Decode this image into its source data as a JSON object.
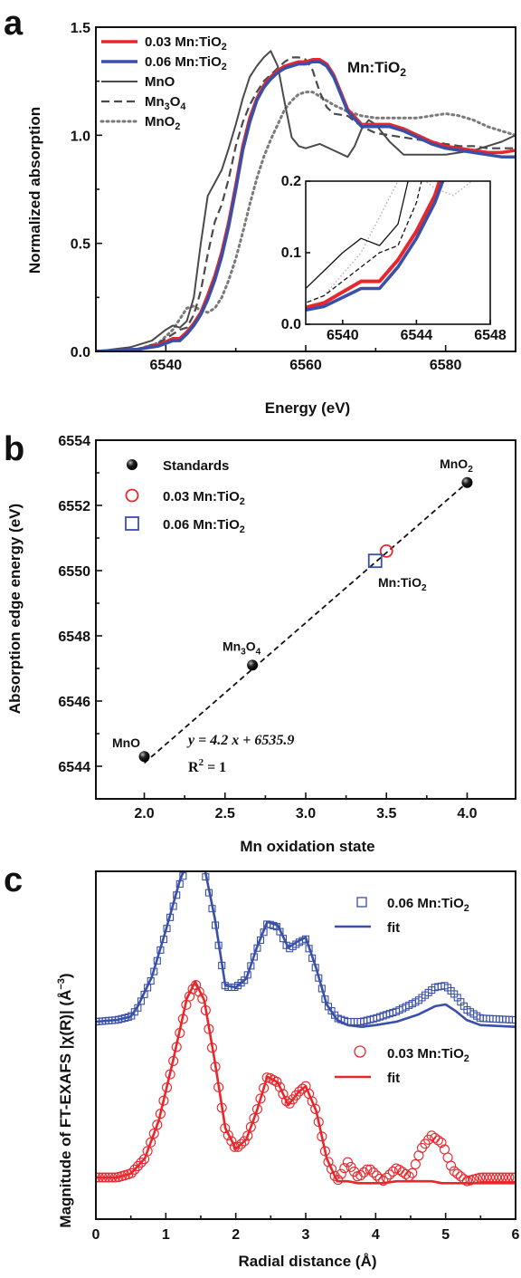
{
  "panel_labels": {
    "a": "a",
    "b": "b",
    "c": "c"
  },
  "colors": {
    "red": "#e8262b",
    "blue": "#3a4fa8",
    "dark_gray": "#4a4a4a",
    "gray": "#7a7a7a",
    "mid_gray": "#8a8a8a",
    "black": "#111111"
  },
  "chart_data": [
    {
      "id": "a",
      "type": "line",
      "xlabel": "Energy (eV)",
      "ylabel": "Normalized absorption",
      "xlim": [
        6530,
        6590
      ],
      "ylim": [
        0,
        1.5
      ],
      "xticks": [
        6540,
        6560,
        6580
      ],
      "yticks": [
        0.0,
        0.5,
        1.0,
        1.5
      ],
      "xtick_labels": [
        "6540",
        "6560",
        "6580"
      ],
      "ytick_labels": [
        "0.0",
        "0.5",
        "1.0",
        "1.5"
      ],
      "legend_position": "top-left",
      "annotation": {
        "label": "Mn:TiO",
        "sub": "2"
      },
      "series": [
        {
          "name": "0.03 Mn:TiO",
          "sub": "2",
          "color": "#e8262b",
          "style": "solid",
          "width": 3.5,
          "x": [
            6530,
            6536,
            6539,
            6541,
            6542,
            6543,
            6544,
            6545,
            6546,
            6547,
            6548,
            6549,
            6550,
            6551,
            6552,
            6553,
            6554,
            6555,
            6556,
            6557,
            6558,
            6559,
            6560,
            6561,
            6562,
            6563,
            6564,
            6565,
            6566,
            6568,
            6570,
            6572,
            6574,
            6576,
            6578,
            6580,
            6582,
            6584,
            6586,
            6588,
            6590
          ],
          "y": [
            0.0,
            0.01,
            0.03,
            0.06,
            0.06,
            0.09,
            0.13,
            0.18,
            0.26,
            0.35,
            0.46,
            0.6,
            0.77,
            0.95,
            1.08,
            1.17,
            1.23,
            1.27,
            1.3,
            1.32,
            1.33,
            1.34,
            1.34,
            1.35,
            1.35,
            1.33,
            1.28,
            1.2,
            1.12,
            1.05,
            1.05,
            1.05,
            1.03,
            1.0,
            0.97,
            0.95,
            0.94,
            0.93,
            0.92,
            0.92,
            0.93
          ]
        },
        {
          "name": "0.06 Mn:TiO",
          "sub": "2",
          "color": "#3a4fa8",
          "style": "solid",
          "width": 3.5,
          "x": [
            6530,
            6536,
            6539,
            6541,
            6542,
            6543,
            6544,
            6545,
            6546,
            6547,
            6548,
            6549,
            6550,
            6551,
            6552,
            6553,
            6554,
            6555,
            6556,
            6557,
            6558,
            6559,
            6560,
            6561,
            6562,
            6563,
            6564,
            6565,
            6566,
            6568,
            6570,
            6572,
            6574,
            6576,
            6578,
            6580,
            6582,
            6584,
            6586,
            6588,
            6590
          ],
          "y": [
            0.0,
            0.01,
            0.025,
            0.05,
            0.05,
            0.08,
            0.12,
            0.17,
            0.24,
            0.33,
            0.44,
            0.58,
            0.75,
            0.93,
            1.06,
            1.16,
            1.22,
            1.26,
            1.29,
            1.31,
            1.32,
            1.33,
            1.33,
            1.34,
            1.34,
            1.32,
            1.27,
            1.19,
            1.11,
            1.04,
            1.04,
            1.04,
            1.02,
            0.99,
            0.96,
            0.94,
            0.93,
            0.92,
            0.91,
            0.9,
            0.9
          ]
        },
        {
          "name": "MnO",
          "color": "#4a4a4a",
          "style": "solid",
          "width": 2,
          "x": [
            6530,
            6535,
            6538,
            6540,
            6541,
            6542,
            6543,
            6544,
            6545,
            6546,
            6547,
            6548,
            6549,
            6550,
            6551,
            6552,
            6553,
            6554,
            6555,
            6556,
            6557,
            6558,
            6559,
            6560,
            6561,
            6562,
            6564,
            6566,
            6567,
            6568,
            6569,
            6570,
            6572,
            6574,
            6576,
            6580,
            6582,
            6584,
            6586,
            6588,
            6590
          ],
          "y": [
            0.0,
            0.02,
            0.05,
            0.1,
            0.12,
            0.11,
            0.14,
            0.25,
            0.5,
            0.72,
            0.78,
            0.84,
            0.94,
            1.05,
            1.17,
            1.27,
            1.32,
            1.36,
            1.39,
            1.32,
            1.15,
            0.99,
            0.95,
            0.94,
            0.95,
            0.96,
            0.93,
            0.9,
            0.95,
            1.03,
            1.07,
            1.05,
            0.97,
            0.91,
            0.91,
            0.91,
            0.92,
            0.93,
            0.95,
            0.97,
            1.0
          ]
        },
        {
          "name": "Mn",
          "sub": "3",
          "suffix": "O",
          "sub2": "4",
          "color": "#4a4a4a",
          "style": "dashed",
          "width": 2.2,
          "x": [
            6530,
            6536,
            6539,
            6541,
            6542,
            6543,
            6544,
            6545,
            6546,
            6547,
            6548,
            6549,
            6550,
            6551,
            6552,
            6553,
            6554,
            6555,
            6556,
            6557,
            6558,
            6559,
            6560,
            6561,
            6562,
            6563,
            6564,
            6566,
            6568,
            6570,
            6572,
            6574,
            6576,
            6578,
            6580,
            6582,
            6584,
            6586,
            6588,
            6590
          ],
          "y": [
            0.0,
            0.01,
            0.04,
            0.08,
            0.1,
            0.11,
            0.17,
            0.28,
            0.45,
            0.6,
            0.68,
            0.8,
            0.95,
            1.06,
            1.14,
            1.2,
            1.25,
            1.28,
            1.31,
            1.34,
            1.36,
            1.36,
            1.35,
            1.3,
            1.2,
            1.13,
            1.1,
            1.09,
            1.04,
            1.01,
            1.0,
            0.99,
            0.98,
            0.97,
            0.96,
            0.95,
            0.95,
            0.94,
            0.94,
            0.94
          ]
        },
        {
          "name": "MnO",
          "sub": "2",
          "color": "#7a7a7a",
          "style": "dotted",
          "width": 3,
          "x": [
            6530,
            6536,
            6539,
            6541,
            6542,
            6543,
            6544,
            6545,
            6546,
            6547,
            6548,
            6549,
            6550,
            6551,
            6552,
            6553,
            6554,
            6555,
            6556,
            6557,
            6558,
            6559,
            6560,
            6561,
            6562,
            6563,
            6564,
            6566,
            6568,
            6570,
            6572,
            6574,
            6576,
            6578,
            6580,
            6582,
            6584,
            6586,
            6588,
            6590
          ],
          "y": [
            0.0,
            0.01,
            0.04,
            0.1,
            0.15,
            0.2,
            0.21,
            0.19,
            0.18,
            0.2,
            0.25,
            0.33,
            0.43,
            0.55,
            0.68,
            0.8,
            0.9,
            0.98,
            1.05,
            1.12,
            1.16,
            1.19,
            1.2,
            1.2,
            1.18,
            1.16,
            1.14,
            1.11,
            1.09,
            1.08,
            1.08,
            1.08,
            1.08,
            1.09,
            1.1,
            1.09,
            1.07,
            1.04,
            1.02,
            1.0
          ]
        }
      ],
      "inset": {
        "xlim": [
          6538,
          6548
        ],
        "ylim": [
          0,
          0.2
        ],
        "xticks": [
          6540,
          6544,
          6548
        ],
        "yticks": [
          0.0,
          0.1,
          0.2
        ],
        "xtick_labels": [
          "6540",
          "6544",
          "6548"
        ],
        "ytick_labels": [
          "0.0",
          "0.1",
          "0.2"
        ]
      }
    },
    {
      "id": "b",
      "type": "scatter",
      "xlabel": "Mn oxidation state",
      "ylabel": "Absorption edge energy (eV)",
      "xlim": [
        1.7,
        4.3
      ],
      "ylim": [
        6543,
        6554
      ],
      "xticks": [
        2.0,
        2.5,
        3.0,
        3.5,
        4.0
      ],
      "yticks": [
        6544,
        6546,
        6548,
        6550,
        6552,
        6554
      ],
      "xtick_labels": [
        "2.0",
        "2.5",
        "3.0",
        "3.5",
        "4.0"
      ],
      "ytick_labels": [
        "6544",
        "6546",
        "6548",
        "6550",
        "6552",
        "6554"
      ],
      "legend_position": "top-left",
      "fit": {
        "slope": 4.2,
        "intercept": 6535.9,
        "x_range": [
          2.0,
          4.0
        ]
      },
      "equation_label": "y = 4.2 x + 6535.9",
      "r2_label": "R",
      "r2_sup": "2",
      "r2_value": " = 1",
      "series": [
        {
          "name": "Standards",
          "marker": "ball",
          "color": "#111111",
          "points": [
            {
              "x": 2.0,
              "y": 6544.3,
              "label": "MnO"
            },
            {
              "x": 2.67,
              "y": 6547.1,
              "label": "Mn",
              "sub": "3",
              "suffix": "O",
              "sub2": "4"
            },
            {
              "x": 4.0,
              "y": 6552.7,
              "label": "MnO",
              "sub": "2"
            }
          ]
        },
        {
          "name": "0.03 Mn:TiO",
          "sub": "2",
          "marker": "open-circle",
          "color": "#e8262b",
          "points": [
            {
              "x": 3.5,
              "y": 6550.6
            }
          ]
        },
        {
          "name": "0.06 Mn:TiO",
          "sub": "2",
          "marker": "open-square",
          "color": "#3a4fa8",
          "points": [
            {
              "x": 3.43,
              "y": 6550.3
            }
          ]
        }
      ],
      "annotation": {
        "label": "Mn:TiO",
        "sub": "2"
      }
    },
    {
      "id": "c",
      "type": "line",
      "xlabel": "Radial distance (Å)",
      "ylabel_main": "Magnitude of FT-EXAFS |χ(R)| (Å",
      "ylabel_sup": "−3",
      "ylabel_end": ")",
      "xlim": [
        0,
        6
      ],
      "xticks": [
        0,
        1,
        2,
        3,
        4,
        5,
        6
      ],
      "xtick_labels": [
        "0",
        "1",
        "2",
        "3",
        "4",
        "5",
        "6"
      ],
      "legend_position": "right",
      "series": [
        {
          "name": "0.06 Mn:TiO",
          "sub": "2",
          "role": "data",
          "marker": "open-square",
          "color": "#3a4fa8",
          "x": [
            0,
            0.3,
            0.5,
            0.6,
            0.8,
            1.0,
            1.2,
            1.35,
            1.45,
            1.55,
            1.7,
            1.85,
            2.0,
            2.15,
            2.3,
            2.45,
            2.6,
            2.75,
            2.9,
            3.0,
            3.15,
            3.3,
            3.45,
            3.6,
            3.8,
            4.0,
            4.3,
            4.6,
            4.85,
            5.0,
            5.15,
            5.3,
            5.5,
            6.0
          ],
          "y": [
            0.0,
            0.01,
            0.03,
            0.08,
            0.25,
            0.52,
            0.8,
            0.95,
            0.98,
            0.88,
            0.58,
            0.2,
            0.2,
            0.25,
            0.42,
            0.57,
            0.55,
            0.42,
            0.46,
            0.48,
            0.3,
            0.1,
            0.02,
            0.0,
            0.0,
            0.02,
            0.06,
            0.12,
            0.2,
            0.21,
            0.15,
            0.07,
            0.02,
            0.01
          ]
        },
        {
          "name": "fit",
          "role": "fit",
          "color": "#3a4fa8",
          "x": [
            0,
            0.3,
            0.5,
            0.6,
            0.8,
            1.0,
            1.2,
            1.35,
            1.45,
            1.55,
            1.7,
            1.85,
            2.0,
            2.15,
            2.3,
            2.45,
            2.6,
            2.75,
            2.9,
            3.0,
            3.15,
            3.3,
            3.45,
            3.6,
            3.8,
            4.0,
            4.3,
            4.6,
            4.85,
            5.0,
            5.15,
            5.3,
            5.5,
            6.0
          ],
          "y": [
            0.0,
            0.01,
            0.03,
            0.09,
            0.26,
            0.53,
            0.82,
            0.97,
            1.0,
            0.9,
            0.6,
            0.21,
            0.2,
            0.25,
            0.43,
            0.58,
            0.56,
            0.43,
            0.47,
            0.49,
            0.31,
            0.1,
            0.01,
            -0.02,
            -0.03,
            -0.02,
            0.0,
            0.04,
            0.09,
            0.1,
            0.06,
            0.01,
            -0.02,
            -0.03
          ]
        },
        {
          "name": "0.03 Mn:TiO",
          "sub": "2",
          "role": "data",
          "marker": "open-circle",
          "color": "#e8262b",
          "x": [
            0,
            0.3,
            0.5,
            0.7,
            0.9,
            1.1,
            1.3,
            1.42,
            1.55,
            1.7,
            1.85,
            2.0,
            2.15,
            2.3,
            2.45,
            2.6,
            2.75,
            2.9,
            3.0,
            3.15,
            3.3,
            3.45,
            3.6,
            3.75,
            3.9,
            4.1,
            4.3,
            4.5,
            4.65,
            4.8,
            4.95,
            5.1,
            5.3,
            5.5,
            6.0
          ],
          "y": [
            0.0,
            0.0,
            0.02,
            0.1,
            0.3,
            0.6,
            0.92,
            1.02,
            0.92,
            0.6,
            0.25,
            0.15,
            0.2,
            0.35,
            0.53,
            0.5,
            0.38,
            0.45,
            0.48,
            0.35,
            0.1,
            -0.02,
            0.08,
            0.0,
            0.05,
            -0.02,
            0.05,
            0.0,
            0.15,
            0.22,
            0.18,
            0.04,
            -0.02,
            0.0,
            0.0
          ]
        },
        {
          "name": "fit",
          "role": "fit",
          "color": "#e8262b",
          "x": [
            0,
            0.3,
            0.5,
            0.7,
            0.9,
            1.1,
            1.3,
            1.42,
            1.55,
            1.7,
            1.85,
            2.0,
            2.15,
            2.3,
            2.45,
            2.6,
            2.75,
            2.9,
            3.0,
            3.15,
            3.3,
            3.45,
            3.6,
            3.75,
            3.9,
            4.1,
            4.3,
            4.5,
            4.65,
            4.8,
            4.95,
            5.1,
            5.3,
            5.5,
            6.0
          ],
          "y": [
            0.0,
            0.0,
            0.02,
            0.1,
            0.3,
            0.61,
            0.94,
            1.03,
            0.93,
            0.61,
            0.26,
            0.15,
            0.2,
            0.35,
            0.53,
            0.5,
            0.38,
            0.45,
            0.48,
            0.35,
            0.1,
            -0.02,
            -0.02,
            -0.03,
            -0.03,
            -0.03,
            -0.02,
            -0.02,
            -0.02,
            -0.02,
            -0.03,
            -0.03,
            -0.03,
            -0.03,
            -0.03
          ]
        }
      ]
    }
  ]
}
